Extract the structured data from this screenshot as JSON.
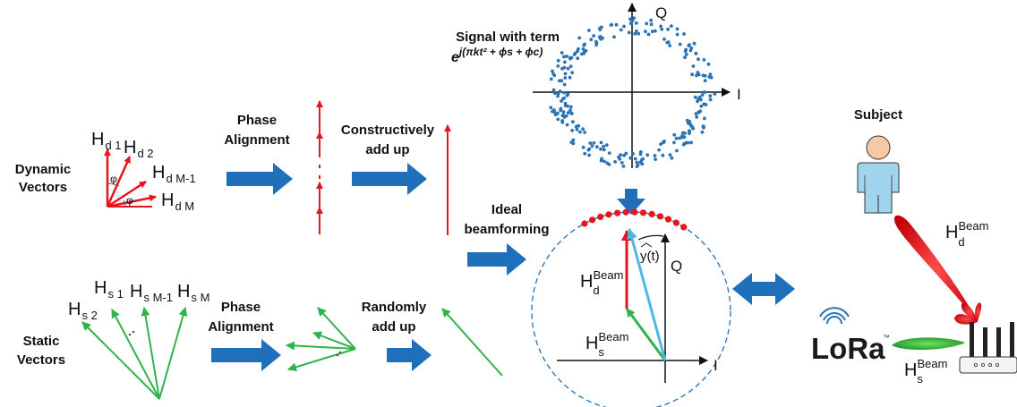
{
  "dynamic": {
    "title_line1": "Dynamic",
    "title_line2": "Vectors",
    "vec_labels": [
      {
        "base": "H",
        "sub": "d 1"
      },
      {
        "base": "H",
        "sub": "d 2"
      },
      {
        "base": "H",
        "sub": "d M-1"
      },
      {
        "base": "H",
        "sub": "d M"
      }
    ],
    "phi": "φ",
    "phase_line1": "Phase",
    "phase_line2": "Alignment",
    "add_line1": "Constructively",
    "add_line2": "add up"
  },
  "static": {
    "title_line1": "Static",
    "title_line2": "Vectors",
    "vec_labels": [
      {
        "base": "H",
        "sub": "s 2"
      },
      {
        "base": "H",
        "sub": "s 1"
      },
      {
        "base": "H",
        "sub": "s M-1"
      },
      {
        "base": "H",
        "sub": "s M"
      }
    ],
    "phase_line1": "Phase",
    "phase_line2": "Alignment",
    "add_line1": "Randomly",
    "add_line2": "add up"
  },
  "constellation": {
    "title": "Signal with term",
    "formula_base": "e",
    "formula_exp": "j(πkt² + ϕs + ϕc)",
    "axis_i": "I",
    "axis_q": "Q"
  },
  "ideal": {
    "line1": "Ideal",
    "line2": "beamforming"
  },
  "phasor": {
    "hd_base": "H",
    "hd_sup": "Beam",
    "hd_sub": "d",
    "hs_base": "H",
    "hs_sup": "Beam",
    "hs_sub": "s",
    "yt": "y(t)",
    "axis_i": "I",
    "axis_q": "Q"
  },
  "scene": {
    "subject": "Subject",
    "lora": "LoRa",
    "tm": "™",
    "hd_base": "H",
    "hd_sup": "Beam",
    "hd_sub": "d",
    "hs_base": "H",
    "hs_sup": "Beam",
    "hs_sub": "s"
  },
  "colors": {
    "dynamic": "#e8141b",
    "static": "#2fb34a",
    "arrow": "#1f6fba",
    "scatter": "#2a73b6",
    "resultant": "#4db8e6"
  }
}
